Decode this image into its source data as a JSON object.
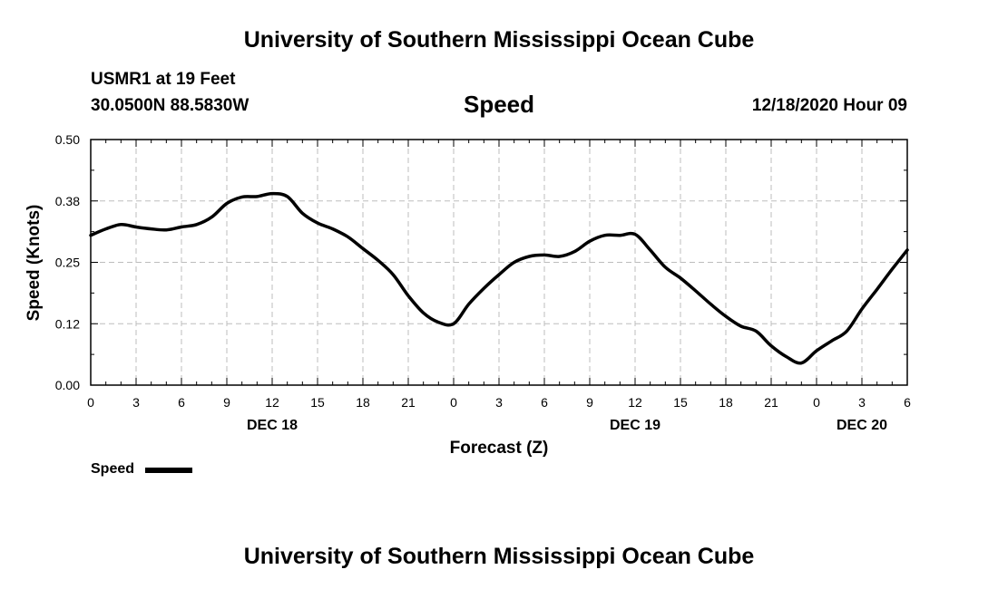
{
  "header": {
    "title": "University of Southern Mississippi Ocean Cube",
    "station": "USMR1 at 19 Feet",
    "location": "30.0500N 88.5830W",
    "timestamp": "12/18/2020 Hour 09"
  },
  "footer": {
    "title": "University of Southern Mississippi Ocean Cube"
  },
  "legend": {
    "label": "Speed"
  },
  "chart_data": {
    "type": "line",
    "title": "Speed",
    "xlabel": "Forecast (Z)",
    "ylabel": "Speed (Knots)",
    "ylim": [
      0.0,
      0.5
    ],
    "xlim": [
      0,
      54
    ],
    "grid": true,
    "legend_position": "bottom-left",
    "y_ticks": [
      {
        "value": 0.0,
        "label": "0.00"
      },
      {
        "value": 0.125,
        "label": "0.12"
      },
      {
        "value": 0.25,
        "label": "0.25"
      },
      {
        "value": 0.375,
        "label": "0.38"
      },
      {
        "value": 0.5,
        "label": "0.50"
      }
    ],
    "x_ticks": [
      {
        "value": 0,
        "label": "0"
      },
      {
        "value": 3,
        "label": "3"
      },
      {
        "value": 6,
        "label": "6"
      },
      {
        "value": 9,
        "label": "9"
      },
      {
        "value": 12,
        "label": "12"
      },
      {
        "value": 15,
        "label": "15"
      },
      {
        "value": 18,
        "label": "18"
      },
      {
        "value": 21,
        "label": "21"
      },
      {
        "value": 24,
        "label": "0"
      },
      {
        "value": 27,
        "label": "3"
      },
      {
        "value": 30,
        "label": "6"
      },
      {
        "value": 33,
        "label": "9"
      },
      {
        "value": 36,
        "label": "12"
      },
      {
        "value": 39,
        "label": "15"
      },
      {
        "value": 42,
        "label": "18"
      },
      {
        "value": 45,
        "label": "21"
      },
      {
        "value": 48,
        "label": "0"
      },
      {
        "value": 51,
        "label": "3"
      },
      {
        "value": 54,
        "label": "6"
      }
    ],
    "date_labels": [
      {
        "value": 12,
        "label": "DEC 18"
      },
      {
        "value": 36,
        "label": "DEC 19"
      },
      {
        "value": 51,
        "label": "DEC 20"
      }
    ],
    "series": [
      {
        "name": "Speed",
        "color": "#000000",
        "x": [
          0,
          1,
          2,
          3,
          4,
          5,
          6,
          7,
          8,
          9,
          10,
          11,
          12,
          13,
          14,
          15,
          16,
          17,
          18,
          19,
          20,
          21,
          22,
          23,
          24,
          25,
          26,
          27,
          28,
          29,
          30,
          31,
          32,
          33,
          34,
          35,
          36,
          37,
          38,
          39,
          40,
          41,
          42,
          43,
          44,
          45,
          46,
          47,
          48,
          49,
          50,
          51,
          52,
          53,
          54
        ],
        "values": [
          0.305,
          0.318,
          0.327,
          0.322,
          0.318,
          0.316,
          0.322,
          0.327,
          0.342,
          0.37,
          0.383,
          0.384,
          0.39,
          0.384,
          0.35,
          0.33,
          0.318,
          0.302,
          0.278,
          0.254,
          0.225,
          0.182,
          0.147,
          0.128,
          0.125,
          0.165,
          0.197,
          0.225,
          0.25,
          0.262,
          0.265,
          0.262,
          0.272,
          0.293,
          0.305,
          0.305,
          0.307,
          0.275,
          0.24,
          0.218,
          0.192,
          0.165,
          0.14,
          0.12,
          0.11,
          0.08,
          0.058,
          0.045,
          0.07,
          0.09,
          0.11,
          0.155,
          0.195,
          0.236,
          0.275
        ]
      }
    ]
  }
}
